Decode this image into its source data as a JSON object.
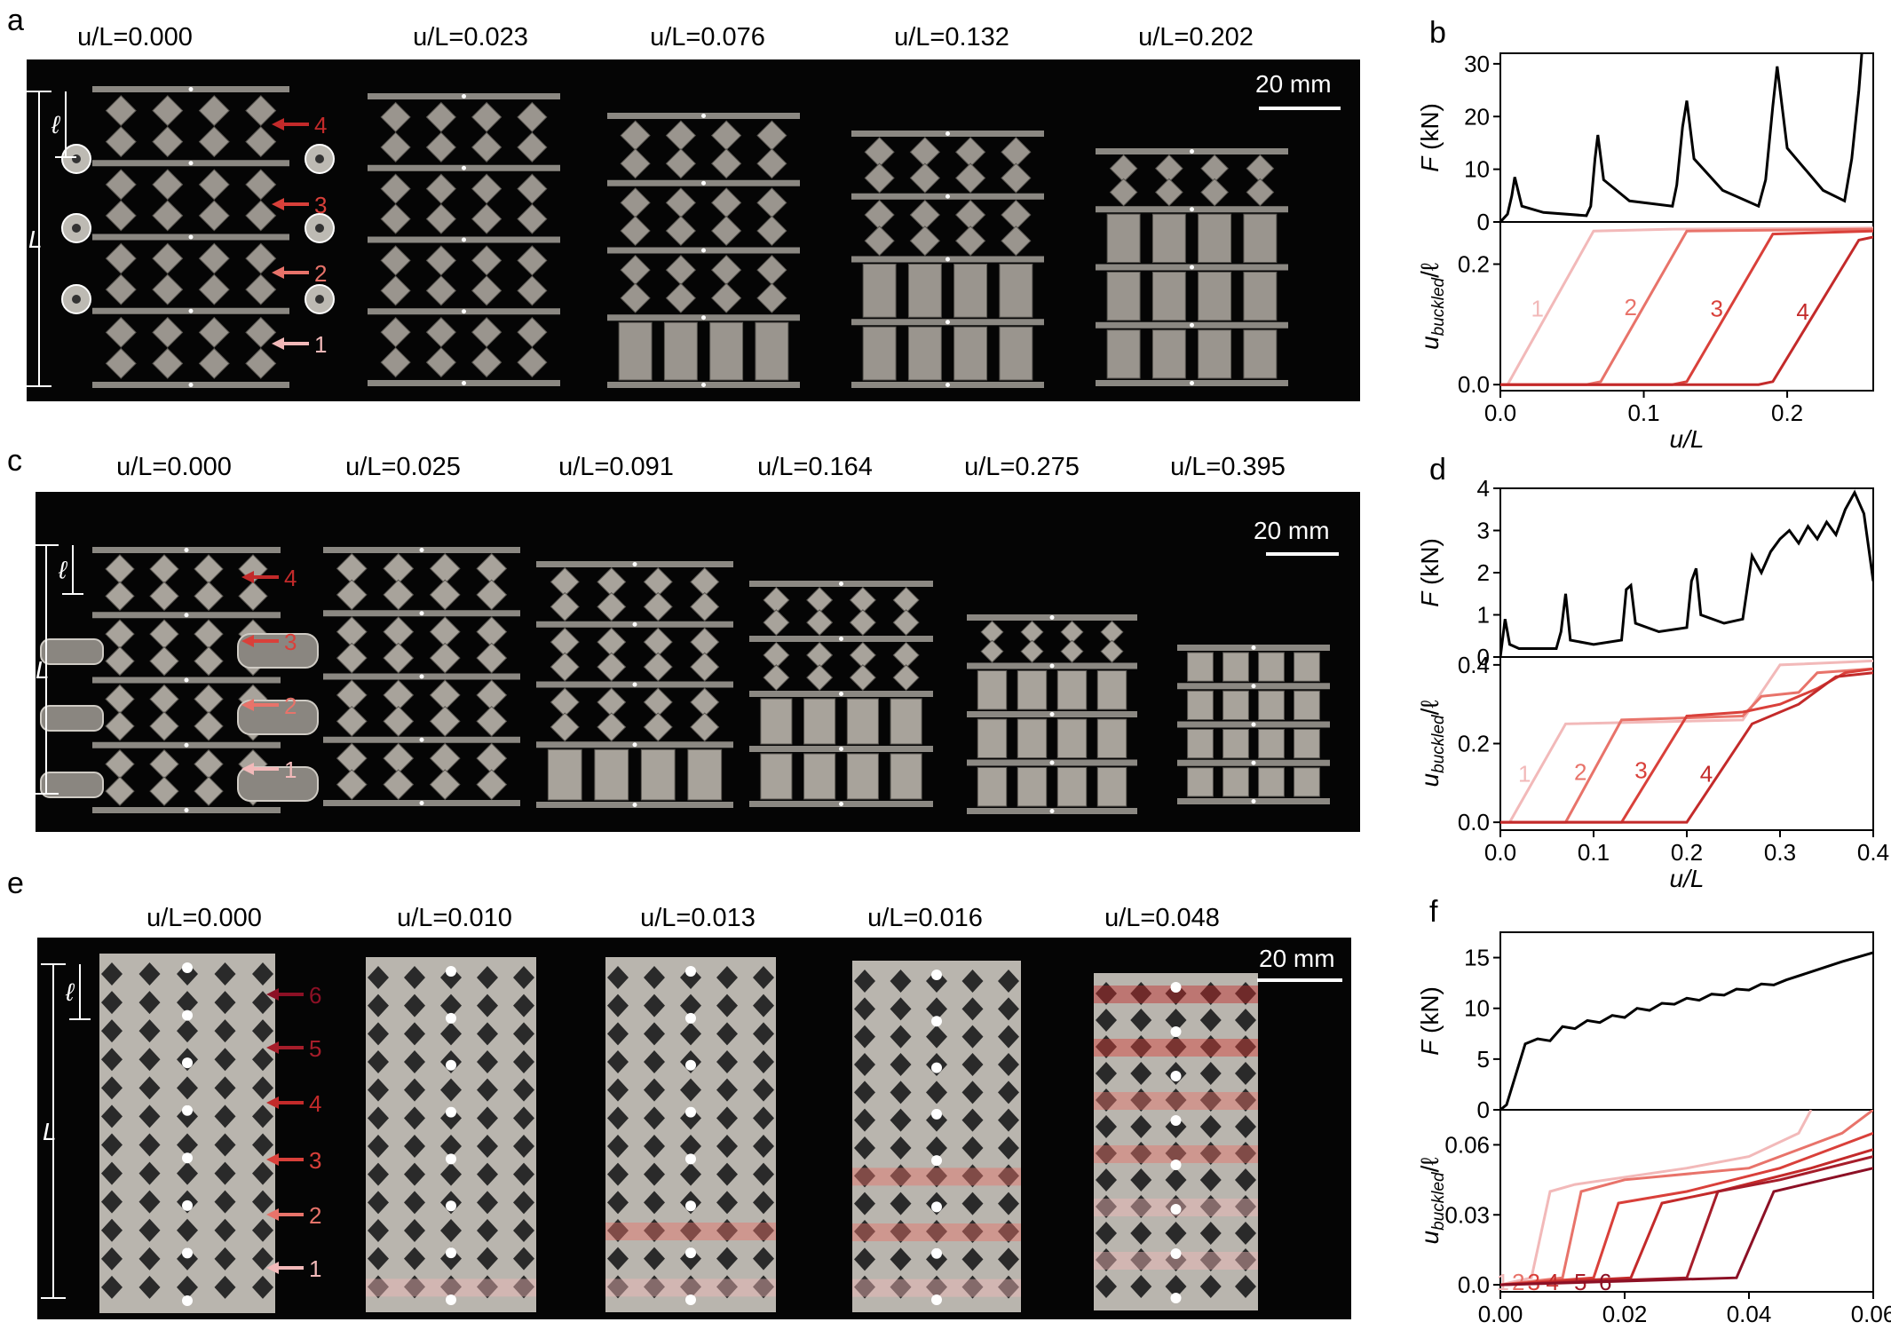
{
  "colors": {
    "curve_black": "#000000",
    "c1": "#f2b9b9",
    "c2": "#e8736a",
    "c3": "#d9403a",
    "c4": "#c32a2a",
    "c5": "#a61d2a",
    "c6": "#8c1025",
    "metal": "#9a958e",
    "background_photo": "#050505"
  },
  "panels": {
    "a": {
      "letter": "a",
      "captions": [
        "u/L=0.000",
        "u/L=0.023",
        "u/L=0.076",
        "u/L=0.132",
        "u/L=0.202"
      ],
      "scale_bar": "20 mm",
      "arrow_labels": [
        "4",
        "3",
        "2",
        "1"
      ],
      "dim_labels": {
        "small": "ℓ",
        "large": "L"
      }
    },
    "b": {
      "letter": "b"
    },
    "c": {
      "letter": "c",
      "captions": [
        "u/L=0.000",
        "u/L=0.025",
        "u/L=0.091",
        "u/L=0.164",
        "u/L=0.275",
        "u/L=0.395"
      ],
      "scale_bar": "20 mm",
      "arrow_labels": [
        "4",
        "3",
        "2",
        "1"
      ],
      "dim_labels": {
        "small": "ℓ",
        "large": "L"
      }
    },
    "d": {
      "letter": "d"
    },
    "e": {
      "letter": "e",
      "captions": [
        "u/L=0.000",
        "u/L=0.010",
        "u/L=0.013",
        "u/L=0.016",
        "u/L=0.048"
      ],
      "scale_bar": "20 mm",
      "arrow_labels": [
        "6",
        "5",
        "4",
        "3",
        "2",
        "1"
      ],
      "dim_labels": {
        "small": "ℓ",
        "large": "L"
      }
    },
    "f": {
      "letter": "f"
    }
  },
  "chart_data": [
    {
      "panel": "b",
      "type": "line",
      "subplots": [
        {
          "ylabel": "F (kN)",
          "xlim": [
            0,
            0.26
          ],
          "ylim": [
            0,
            32
          ],
          "yticks": [
            0,
            10,
            20,
            30
          ],
          "series": [
            {
              "x": [
                0,
                0.005,
                0.008,
                0.01,
                0.015,
                0.03,
                0.06,
                0.063,
                0.066,
                0.068,
                0.072,
                0.09,
                0.12,
                0.123,
                0.127,
                0.13,
                0.135,
                0.155,
                0.18,
                0.185,
                0.19,
                0.193,
                0.2,
                0.225,
                0.24,
                0.245,
                0.25,
                0.252
              ],
              "y": [
                0,
                1.5,
                5,
                8.5,
                3,
                1.8,
                1.2,
                3,
                12,
                16.5,
                8,
                4,
                3,
                7,
                18,
                23,
                12,
                6,
                3,
                8,
                22,
                29.5,
                14,
                6,
                4,
                12,
                25,
                32
              ]
            }
          ]
        },
        {
          "ylabel": "u_buckled / ℓ",
          "xlabel": "u/L",
          "xlim": [
            0,
            0.26
          ],
          "ylim": [
            -0.01,
            0.27
          ],
          "xticks": [
            0,
            0.1,
            0.2
          ],
          "yticks": [
            0.0,
            0.2
          ],
          "series": [
            {
              "name": "1",
              "x": [
                0,
                0.005,
                0.065,
                0.12,
                0.26
              ],
              "y": [
                0,
                0,
                0.255,
                0.258,
                0.26
              ]
            },
            {
              "name": "2",
              "x": [
                0,
                0.06,
                0.07,
                0.13,
                0.26
              ],
              "y": [
                0,
                0,
                0.005,
                0.255,
                0.258
              ]
            },
            {
              "name": "3",
              "x": [
                0,
                0.12,
                0.13,
                0.19,
                0.26
              ],
              "y": [
                0,
                0,
                0.005,
                0.25,
                0.255
              ]
            },
            {
              "name": "4",
              "x": [
                0,
                0.18,
                0.19,
                0.25,
                0.26
              ],
              "y": [
                0,
                0,
                0.005,
                0.24,
                0.245
              ]
            }
          ]
        }
      ]
    },
    {
      "panel": "d",
      "type": "line",
      "subplots": [
        {
          "ylabel": "F (kN)",
          "xlim": [
            0,
            0.4
          ],
          "ylim": [
            0,
            4
          ],
          "yticks": [
            0,
            1,
            2,
            3,
            4
          ],
          "series": [
            {
              "x": [
                0,
                0.005,
                0.01,
                0.02,
                0.06,
                0.065,
                0.07,
                0.075,
                0.1,
                0.13,
                0.135,
                0.14,
                0.145,
                0.17,
                0.2,
                0.205,
                0.21,
                0.215,
                0.24,
                0.26,
                0.27,
                0.28,
                0.29,
                0.3,
                0.31,
                0.32,
                0.33,
                0.34,
                0.35,
                0.36,
                0.37,
                0.38,
                0.39,
                0.4
              ],
              "y": [
                0,
                0.9,
                0.3,
                0.2,
                0.2,
                0.6,
                1.5,
                0.4,
                0.3,
                0.4,
                1.6,
                1.7,
                0.8,
                0.6,
                0.7,
                1.8,
                2.1,
                1.0,
                0.8,
                0.9,
                2.4,
                2.0,
                2.5,
                2.8,
                3.0,
                2.7,
                3.1,
                2.8,
                3.2,
                2.9,
                3.5,
                3.9,
                3.4,
                1.8
              ]
            }
          ]
        },
        {
          "ylabel": "u_buckled / ℓ",
          "xlabel": "u/L",
          "xlim": [
            0,
            0.4
          ],
          "ylim": [
            -0.02,
            0.42
          ],
          "xticks": [
            0.0,
            0.1,
            0.2,
            0.3,
            0.4
          ],
          "yticks": [
            0.0,
            0.2,
            0.4
          ],
          "series": [
            {
              "name": "1",
              "x": [
                0,
                0.01,
                0.07,
                0.26,
                0.3,
                0.4
              ],
              "y": [
                0,
                0,
                0.25,
                0.26,
                0.4,
                0.41
              ]
            },
            {
              "name": "2",
              "x": [
                0,
                0.07,
                0.13,
                0.26,
                0.28,
                0.32,
                0.34,
                0.4
              ],
              "y": [
                0,
                0,
                0.26,
                0.27,
                0.32,
                0.33,
                0.38,
                0.39
              ]
            },
            {
              "name": "3",
              "x": [
                0,
                0.13,
                0.2,
                0.26,
                0.3,
                0.34,
                0.37,
                0.4
              ],
              "y": [
                0,
                0,
                0.27,
                0.28,
                0.3,
                0.34,
                0.38,
                0.39
              ]
            },
            {
              "name": "4",
              "x": [
                0,
                0.2,
                0.27,
                0.32,
                0.36,
                0.4
              ],
              "y": [
                0,
                0,
                0.25,
                0.3,
                0.37,
                0.38
              ]
            }
          ]
        }
      ]
    },
    {
      "panel": "f",
      "type": "line",
      "subplots": [
        {
          "ylabel": "F (kN)",
          "xlim": [
            0,
            0.06
          ],
          "ylim": [
            0,
            17.5
          ],
          "yticks": [
            0,
            5,
            10,
            15
          ],
          "series": [
            {
              "x": [
                0,
                0.001,
                0.002,
                0.004,
                0.006,
                0.008,
                0.01,
                0.012,
                0.014,
                0.016,
                0.018,
                0.02,
                0.022,
                0.024,
                0.026,
                0.028,
                0.03,
                0.032,
                0.034,
                0.036,
                0.038,
                0.04,
                0.042,
                0.044,
                0.046,
                0.05,
                0.055,
                0.06
              ],
              "y": [
                0,
                0.5,
                2.5,
                6.5,
                7.0,
                6.8,
                8.2,
                8.0,
                8.8,
                8.6,
                9.3,
                9.1,
                10.0,
                9.8,
                10.5,
                10.4,
                11.0,
                10.8,
                11.4,
                11.3,
                11.9,
                11.8,
                12.4,
                12.3,
                12.8,
                13.6,
                14.6,
                15.5
              ]
            }
          ]
        },
        {
          "ylabel": "u_buckled / ℓ",
          "xlabel": "u/L",
          "xlim": [
            0,
            0.06
          ],
          "ylim": [
            -0.003,
            0.075
          ],
          "xticks": [
            0.0,
            0.02,
            0.04,
            0.06
          ],
          "yticks": [
            0.0,
            0.03,
            0.06
          ],
          "series": [
            {
              "name": "1",
              "x": [
                0,
                0.005,
                0.008,
                0.012,
                0.03,
                0.04,
                0.048,
                0.05
              ],
              "y": [
                0,
                0.003,
                0.04,
                0.043,
                0.05,
                0.055,
                0.065,
                0.075
              ]
            },
            {
              "name": "2",
              "x": [
                0,
                0.01,
                0.013,
                0.02,
                0.04,
                0.055,
                0.06
              ],
              "y": [
                0,
                0.003,
                0.04,
                0.045,
                0.05,
                0.065,
                0.075
              ]
            },
            {
              "name": "3",
              "x": [
                0,
                0.015,
                0.019,
                0.03,
                0.045,
                0.06
              ],
              "y": [
                0,
                0.003,
                0.035,
                0.04,
                0.05,
                0.065
              ]
            },
            {
              "name": "4",
              "x": [
                0,
                0.021,
                0.026,
                0.035,
                0.05,
                0.06
              ],
              "y": [
                0,
                0.003,
                0.035,
                0.04,
                0.05,
                0.058
              ]
            },
            {
              "name": "5",
              "x": [
                0,
                0.03,
                0.035,
                0.045,
                0.06
              ],
              "y": [
                0,
                0.003,
                0.04,
                0.045,
                0.055
              ]
            },
            {
              "name": "6",
              "x": [
                0,
                0.038,
                0.044,
                0.052,
                0.06
              ],
              "y": [
                0,
                0.003,
                0.04,
                0.045,
                0.05
              ]
            }
          ]
        }
      ]
    }
  ]
}
